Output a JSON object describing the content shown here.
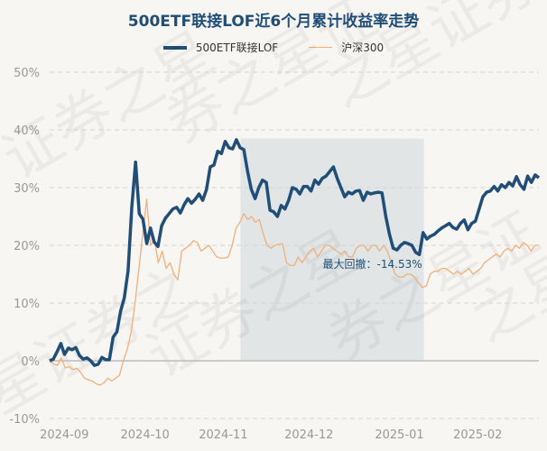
{
  "chart_data": {
    "type": "line",
    "title": "500ETF联接LOF近6个月累计收益率走势",
    "watermark": "证券之星",
    "ylim": [
      -10,
      50
    ],
    "yticks": [
      -10,
      0,
      10,
      20,
      30,
      40,
      50
    ],
    "ytick_labels": [
      "-10%",
      "0%",
      "10%",
      "20%",
      "30%",
      "40%",
      "50%"
    ],
    "xtick_labels": [
      "2024-09",
      "2024-10",
      "2024-11",
      "2024-12",
      "2025-01",
      "2025-02"
    ],
    "xtick_positions": [
      0.03,
      0.195,
      0.355,
      0.53,
      0.715,
      0.875
    ],
    "grid": true,
    "legend_position": "top-center",
    "drawdown": {
      "label": "最大回撤：-14.53%",
      "start_fraction": 0.39,
      "end_fraction": 0.765
    },
    "series": [
      {
        "name": "500ETF联接LOF",
        "color": "#1f4e79",
        "values": [
          0,
          0.3,
          1.6,
          3.0,
          1.1,
          2.2,
          1.9,
          2.3,
          0.9,
          0.3,
          0.5,
          0,
          -0.8,
          -0.6,
          0.6,
          0.2,
          0.2,
          4.1,
          5.0,
          8.6,
          10.9,
          15.6,
          26.6,
          34.4,
          25.5,
          24.5,
          20.3,
          23.0,
          20.6,
          19.8,
          23.4,
          24.7,
          25.5,
          26.3,
          26.6,
          25.6,
          27.0,
          28.1,
          27.3,
          28.0,
          28.9,
          27.8,
          29.7,
          33.6,
          33.9,
          36.3,
          35.9,
          38.0,
          36.9,
          36.7,
          38.3,
          36.9,
          36.6,
          32.8,
          29.7,
          28.1,
          30.0,
          31.3,
          30.9,
          26.1,
          25.8,
          25.0,
          26.9,
          26.3,
          27.8,
          30.0,
          29.7,
          28.9,
          30.2,
          30.2,
          29.4,
          31.3,
          30.6,
          31.6,
          32.0,
          32.8,
          33.6,
          31.6,
          30.0,
          28.4,
          29.2,
          28.9,
          29.4,
          29.5,
          27.8,
          29.2,
          28.9,
          29.1,
          29.2,
          29.1,
          25.0,
          21.9,
          19.5,
          19.2,
          20.0,
          20.5,
          20.3,
          20.0,
          18.8,
          18.4,
          22.2,
          21.1,
          21.6,
          21.9,
          22.5,
          23.0,
          23.4,
          23.8,
          23.1,
          22.8,
          23.8,
          24.4,
          22.7,
          23.8,
          24.2,
          26.3,
          28.4,
          29.2,
          29.4,
          30.2,
          29.4,
          30.5,
          30.0,
          30.9,
          30.3,
          31.9,
          30.5,
          29.7,
          32.0,
          30.9,
          32.2,
          31.7
        ]
      },
      {
        "name": "沪深300",
        "color": "#f0b07a",
        "values": [
          0,
          -0.5,
          -0.8,
          0.5,
          -1.2,
          -1.0,
          -1.5,
          -1.3,
          -2.0,
          -3.0,
          -3.3,
          -3.5,
          -4.0,
          -4.2,
          -3.8,
          -3.0,
          -3.5,
          -3.0,
          -2.5,
          0,
          2,
          5,
          10,
          16,
          22,
          28,
          20,
          21,
          17,
          19,
          16,
          17,
          15,
          14,
          19,
          19.5,
          20,
          20.8,
          20.5,
          19,
          19.5,
          20,
          19,
          18,
          17.8,
          17.8,
          18,
          20,
          23,
          24,
          25.5,
          24.5,
          25,
          24,
          24.5,
          22,
          20,
          19.5,
          20,
          20.2,
          20.3,
          17,
          16.5,
          16.5,
          18,
          17,
          18,
          19,
          19.5,
          18,
          19,
          20,
          20,
          19.5,
          19,
          18.5,
          19,
          18,
          18,
          19.5,
          20,
          20,
          19,
          20,
          20,
          19,
          20,
          19,
          17,
          15,
          14.5,
          14.5,
          15,
          15,
          14.5,
          13.5,
          12.7,
          13,
          15,
          15.5,
          15.5,
          16,
          16,
          15.5,
          15,
          15.5,
          15,
          15.5,
          16,
          15,
          15.5,
          16,
          17,
          17.5,
          18,
          18.5,
          18,
          19,
          19.5,
          19,
          20,
          19.5,
          20.5,
          20,
          19,
          20,
          20
        ]
      }
    ]
  }
}
